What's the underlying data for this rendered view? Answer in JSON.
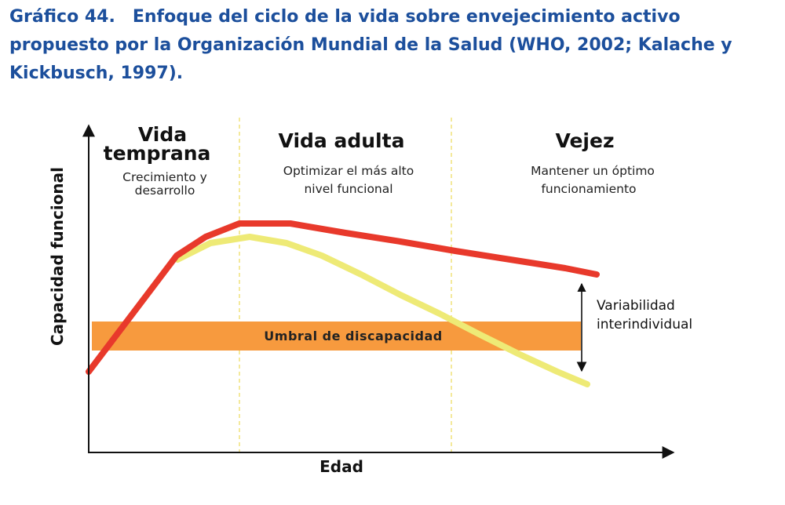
{
  "title": {
    "number": "Gráfico 44.",
    "text": "Enfoque del ciclo de la vida sobre envejecimiento activo propuesto por la Organización Mundial de la Salud (WHO, 2002; Kalache y Kickbusch, 1997)."
  },
  "axes": {
    "y_label": "Capacidad funcional",
    "x_label": "Edad"
  },
  "phases": [
    {
      "title_lines": [
        "Vida",
        "temprana"
      ],
      "subtitle_lines": [
        "Crecimiento y",
        "desarrollo"
      ]
    },
    {
      "title_lines": [
        "Vida adulta"
      ],
      "subtitle_lines": [
        "Optimizar el más alto",
        "nivel funcional"
      ]
    },
    {
      "title_lines": [
        "Vejez"
      ],
      "subtitle_lines": [
        "Mantener un óptimo",
        "funcionamiento"
      ]
    }
  ],
  "band": {
    "label": "Umbral de discapacidad"
  },
  "variability": {
    "label_lines": [
      "Variabilidad",
      "interindividual"
    ]
  },
  "colors": {
    "title": "#1c4f9c",
    "upper_curve": "#e8392b",
    "lower_curve": "#eeea76",
    "band": "#f79a3e",
    "divider": "#f1e27a",
    "axis": "#111111"
  }
}
